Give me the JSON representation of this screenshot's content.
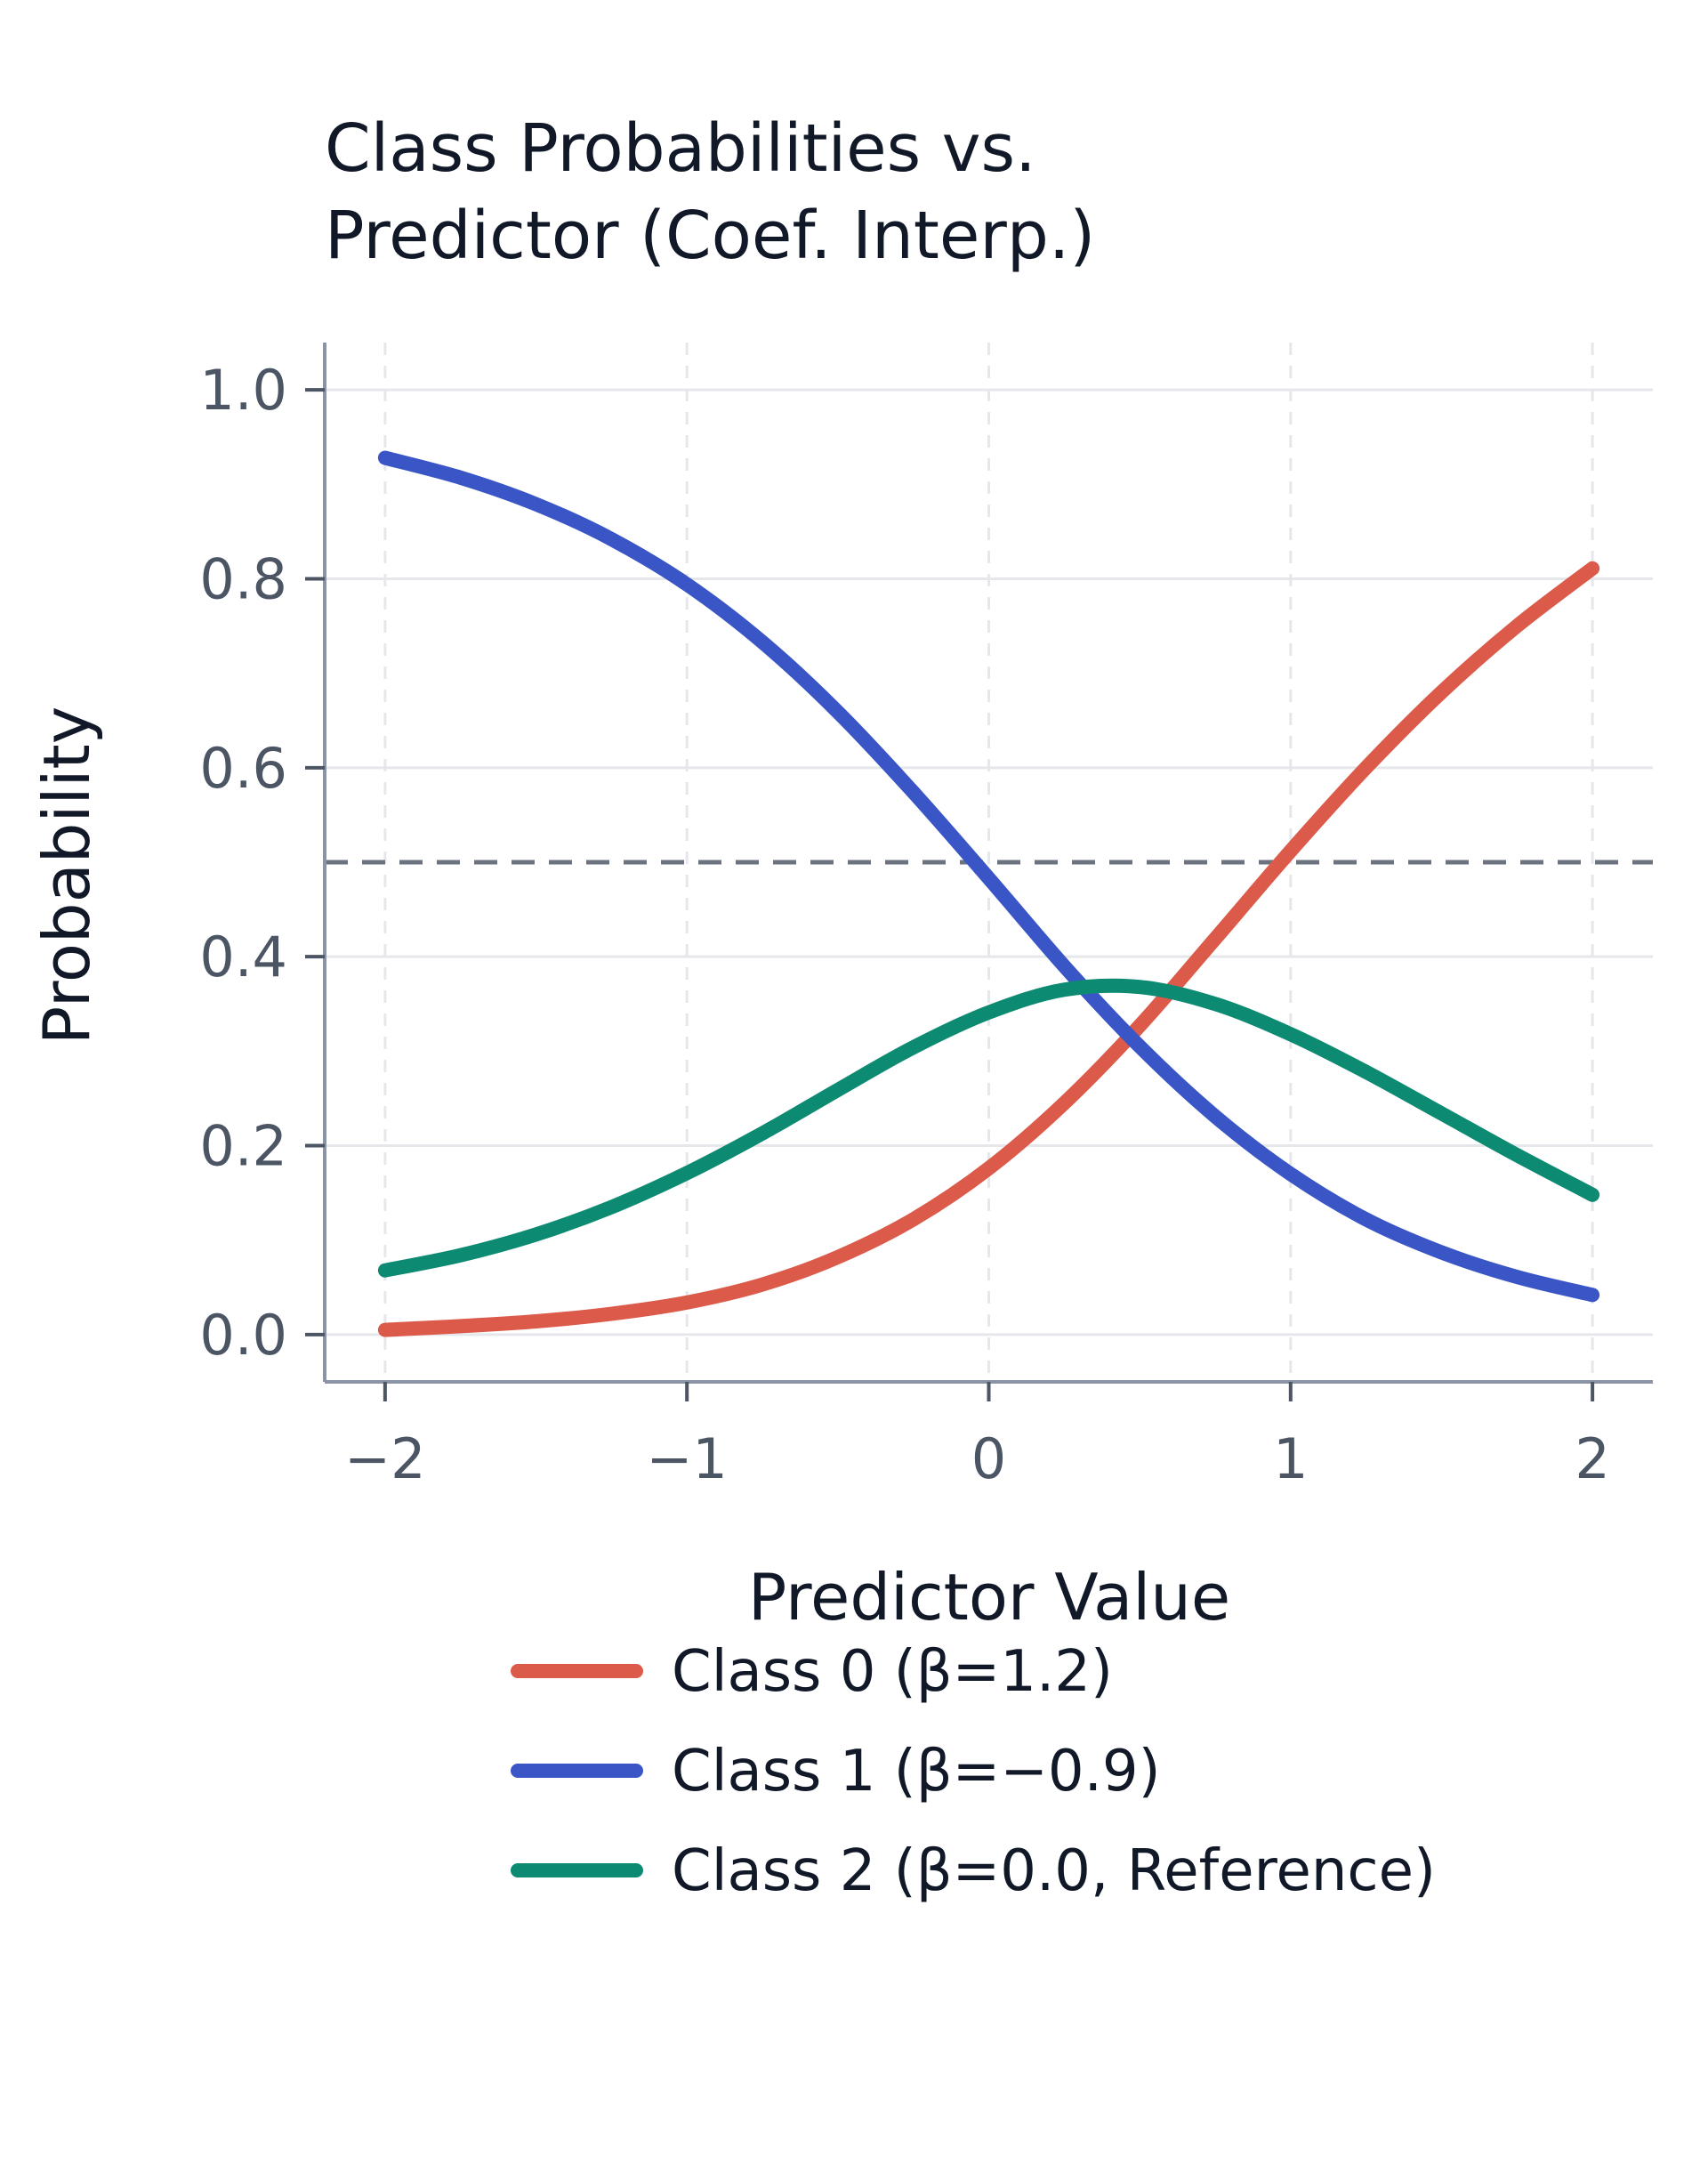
{
  "chart_data": {
    "type": "line",
    "title": [
      "Class Probabilities vs.",
      "Predictor (Coef. Interp.)"
    ],
    "xlabel": "Predictor Value",
    "ylabel": "Probability",
    "xlim": [
      -2.2,
      2.2
    ],
    "ylim": [
      -0.05,
      1.05
    ],
    "xticks": [
      -2,
      -1,
      0,
      1,
      2
    ],
    "xtick_labels": [
      "−2",
      "−1",
      "0",
      "1",
      "2"
    ],
    "yticks": [
      0.0,
      0.2,
      0.4,
      0.6,
      0.8,
      1.0
    ],
    "ytick_labels": [
      "0.0",
      "0.2",
      "0.4",
      "0.6",
      "0.8",
      "1.0"
    ],
    "grid": true,
    "reference_line": {
      "y": 0.5,
      "style": "dashed",
      "color": "#6b7280"
    },
    "legend_position": "bottom",
    "x": [
      -2.0,
      -1.75,
      -1.5,
      -1.25,
      -1.0,
      -0.75,
      -0.5,
      -0.25,
      0.0,
      0.25,
      0.5,
      0.75,
      1.0,
      1.25,
      1.5,
      1.75,
      2.0
    ],
    "series": [
      {
        "name": "Class 0 (β=1.2)",
        "color": "#dc5a4a",
        "values": [
          0.005,
          0.009,
          0.014,
          0.022,
          0.034,
          0.053,
          0.082,
          0.122,
          0.176,
          0.245,
          0.327,
          0.419,
          0.512,
          0.6,
          0.68,
          0.75,
          0.811
        ]
      },
      {
        "name": "Class 1 (β=−0.9)",
        "color": "#3a56c6",
        "values": [
          0.928,
          0.907,
          0.879,
          0.842,
          0.794,
          0.733,
          0.659,
          0.574,
          0.483,
          0.39,
          0.305,
          0.231,
          0.17,
          0.122,
          0.087,
          0.061,
          0.042
        ]
      },
      {
        "name": "Class 2 (β=0.0, Reference)",
        "color": "#0d8a72",
        "values": [
          0.068,
          0.084,
          0.106,
          0.135,
          0.171,
          0.213,
          0.259,
          0.304,
          0.341,
          0.365,
          0.368,
          0.35,
          0.318,
          0.278,
          0.234,
          0.19,
          0.148
        ]
      }
    ]
  }
}
